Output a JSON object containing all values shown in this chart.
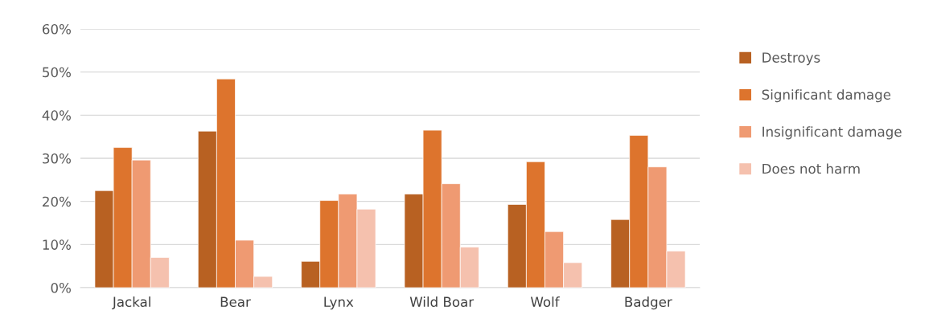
{
  "chart_data": {
    "type": "bar",
    "categories": [
      "Jackal",
      "Bear",
      "Lynx",
      "Wild Boar",
      "Wolf",
      "Badger"
    ],
    "series": [
      {
        "name": "Destroys",
        "color": "#b86122",
        "values": [
          22.5,
          36.3,
          6.1,
          21.7,
          19.3,
          15.8
        ]
      },
      {
        "name": "Significant damage",
        "color": "#dd742d",
        "values": [
          32.5,
          48.4,
          20.2,
          36.5,
          29.2,
          35.3
        ]
      },
      {
        "name": "Insignificant damage",
        "color": "#ef9a72",
        "values": [
          29.6,
          11.0,
          21.7,
          24.1,
          13.0,
          28.0
        ]
      },
      {
        "name": "Does not harm",
        "color": "#f5c1ae",
        "values": [
          7.0,
          2.6,
          18.2,
          9.4,
          5.8,
          8.5
        ]
      }
    ],
    "ylim": [
      0,
      60
    ],
    "yticks": [
      {
        "value": 0,
        "label": "0%"
      },
      {
        "value": 10,
        "label": "10%"
      },
      {
        "value": 20,
        "label": "20%"
      },
      {
        "value": 30,
        "label": "30%"
      },
      {
        "value": 40,
        "label": "40%"
      },
      {
        "value": 50,
        "label": "50%"
      },
      {
        "value": 60,
        "label": "60%"
      }
    ],
    "grid": "y",
    "legend": "right"
  }
}
